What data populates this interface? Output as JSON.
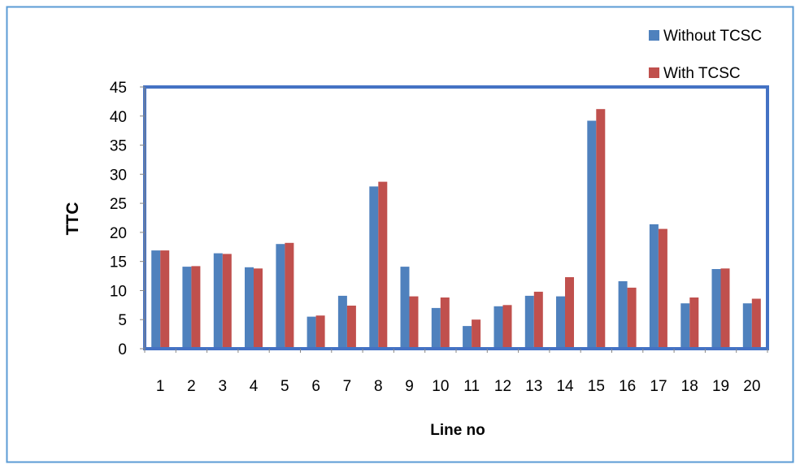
{
  "chart_data": {
    "type": "bar",
    "title": "",
    "xlabel": "Line no",
    "ylabel": "TTC",
    "categories": [
      "1",
      "2",
      "3",
      "4",
      "5",
      "6",
      "7",
      "8",
      "9",
      "10",
      "11",
      "12",
      "13",
      "14",
      "15",
      "16",
      "17",
      "18",
      "19",
      "20"
    ],
    "series": [
      {
        "name": "Without TCSC",
        "color": "#4F81BD",
        "values": [
          16.9,
          14.1,
          16.4,
          14.0,
          18.0,
          5.5,
          9.1,
          27.9,
          14.1,
          7.0,
          3.9,
          7.3,
          9.1,
          9.0,
          39.2,
          11.6,
          21.4,
          7.8,
          13.7,
          7.8
        ]
      },
      {
        "name": "With TCSC",
        "color": "#C0504D",
        "values": [
          16.9,
          14.2,
          16.3,
          13.8,
          18.2,
          5.7,
          7.4,
          28.7,
          9.0,
          8.8,
          5.0,
          7.5,
          9.8,
          12.3,
          41.2,
          10.5,
          20.6,
          8.8,
          13.8,
          8.6
        ]
      }
    ],
    "ylim": [
      0,
      45
    ],
    "yticks": [
      "0",
      "5",
      "10",
      "15",
      "20",
      "25",
      "30",
      "35",
      "40",
      "45"
    ],
    "grid": false,
    "legend_position": "top-right",
    "plot_border_color": "#4472C4",
    "frame_border_color": "#5B9BD5"
  }
}
